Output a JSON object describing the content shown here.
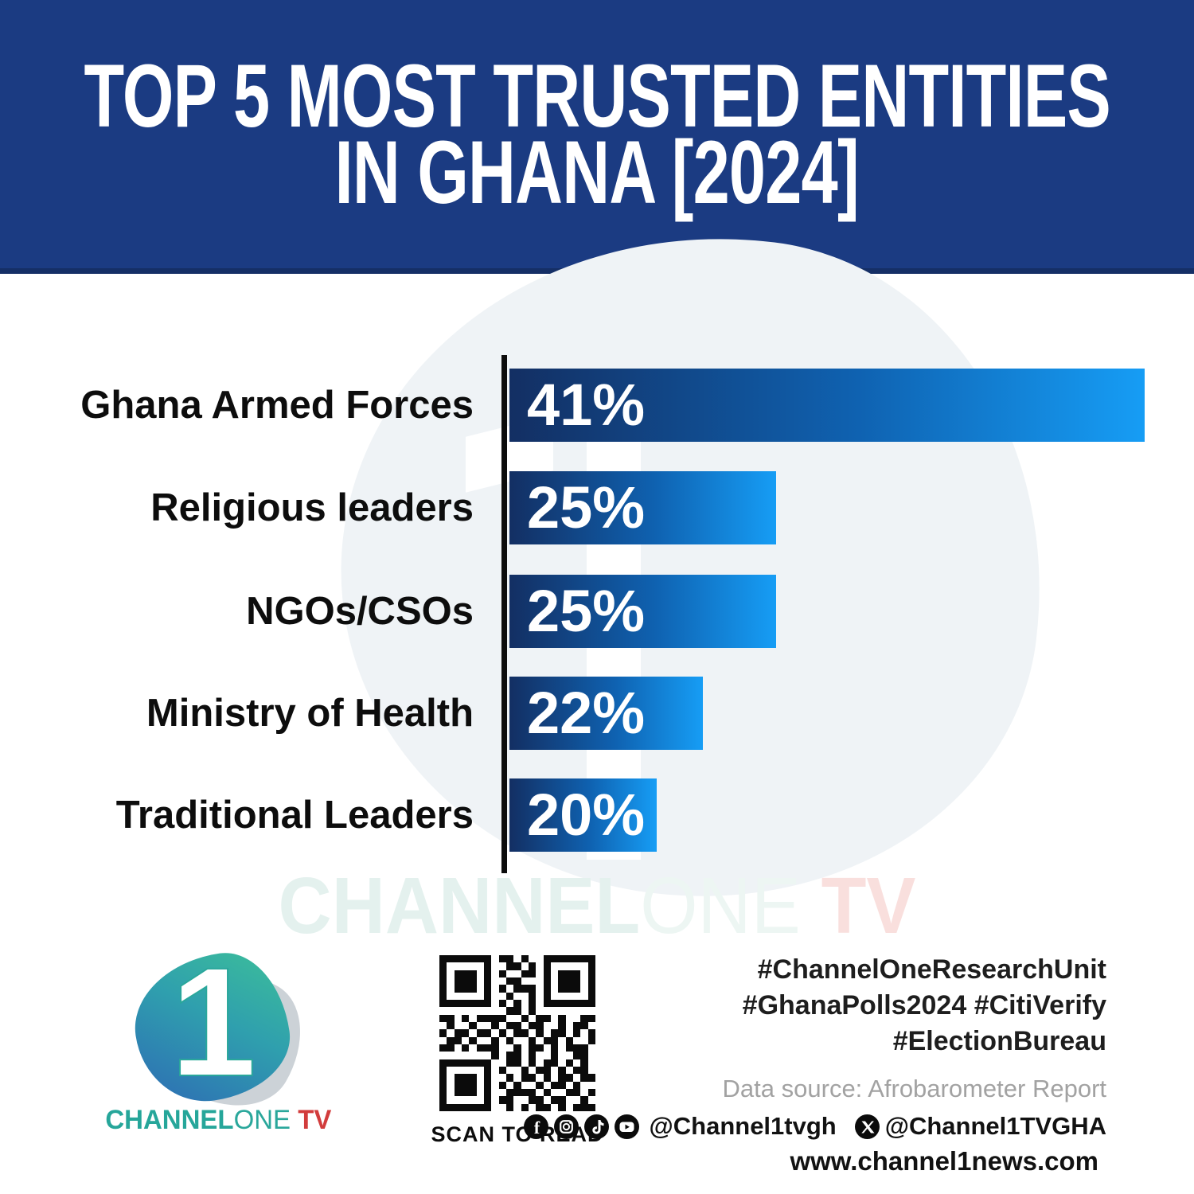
{
  "banner": {
    "title_line1": "TOP 5 MOST TRUSTED ENTITIES",
    "title_line2": "IN GHANA [2024]",
    "bg_color": "#1b3b82"
  },
  "chart_data": {
    "type": "bar",
    "orientation": "horizontal",
    "title": "TOP 5 MOST TRUSTED ENTITIES IN GHANA [2024]",
    "xlabel": "",
    "ylabel": "",
    "categories": [
      "Ghana Armed Forces",
      "Religious leaders",
      "NGOs/CSOs",
      "Ministry of Health",
      "Traditional Leaders"
    ],
    "values": [
      41,
      25,
      25,
      22,
      20
    ],
    "value_labels": [
      "41%",
      "25%",
      "25%",
      "22%",
      "20%"
    ],
    "value_suffix": "%",
    "grid": false,
    "legend": false,
    "bar_width_fractions": [
      1.0,
      0.42,
      0.42,
      0.305,
      0.232
    ],
    "bar_gradient_start": "#132f63",
    "bar_gradient_end": "#169df5",
    "axis_color": "#0c0c0c",
    "category_label_color": "#0d0d0d",
    "value_label_color": "#ffffff"
  },
  "watermark_text": {
    "part1": "CHANNEL",
    "part2": "ONE",
    "part3": " TV"
  },
  "footer": {
    "logo": {
      "numeral": "1",
      "brand_part1": "CHANNEL",
      "brand_part2": "ONE",
      "brand_part3": " TV"
    },
    "qr": {
      "caption": "SCAN TO READ",
      "matrix": [
        "111111101101001111111",
        "100000100110101000001",
        "101110101001101011101",
        "101110100110001011101",
        "101110101011101011101",
        "100000100100101000001",
        "111111101010101111111",
        "000000000110100000000",
        "110101111001011010011",
        "010010010110110010110",
        "101101101011010110101",
        "011010010100101101001",
        "110101110010110101110",
        "000000010110100100110",
        "111111100110101101010",
        "100000101001011010110",
        "101110100101101011011",
        "101110101010010110100",
        "101110100111101001101",
        "100000101100110110010",
        "111111100101011010111"
      ]
    },
    "hashtags": [
      "#ChannelOneResearchUnit",
      "#GhanaPolls2024 #CitiVerify",
      "#ElectionBureau"
    ],
    "data_source": "Data source: Afrobarometer Report",
    "social": {
      "handle1": "@Channel1tvgh",
      "handle2": "@Channel1TVGHA"
    },
    "website": "www.channel1news.com"
  }
}
